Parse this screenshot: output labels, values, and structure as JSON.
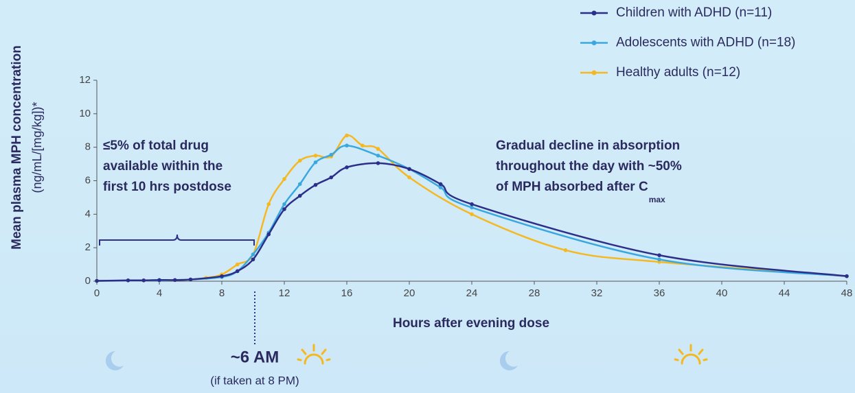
{
  "chart_data": {
    "type": "line",
    "x_label": "Hours after evening dose",
    "y_label": "Mean plasma MPH concentration",
    "y_label_units": "(ng/mL/[mg/kg])*",
    "xlim": [
      0,
      48
    ],
    "ylim": [
      0,
      12
    ],
    "xticks": [
      0,
      4,
      8,
      12,
      16,
      20,
      24,
      28,
      32,
      36,
      40,
      44,
      48
    ],
    "yticks": [
      0,
      2,
      4,
      6,
      8,
      10,
      12
    ],
    "legend": "top-right",
    "series": [
      {
        "name": "Children with ADHD (n=11)",
        "color": "#2b2f8a",
        "x": [
          0,
          2,
          3,
          4,
          5,
          6,
          8,
          9,
          10,
          11,
          12,
          13,
          14,
          15,
          16,
          18,
          20,
          22,
          24,
          36,
          48
        ],
        "values": [
          0.02,
          0.05,
          0.05,
          0.07,
          0.07,
          0.1,
          0.3,
          0.6,
          1.3,
          2.8,
          4.3,
          5.1,
          5.75,
          6.2,
          6.8,
          7.05,
          6.7,
          5.8,
          4.6,
          1.55,
          0.3
        ]
      },
      {
        "name": "Adolescents with ADHD (n=18)",
        "color": "#3aa8e0",
        "x": [
          0,
          4,
          6,
          8,
          9,
          10,
          11,
          12,
          13,
          14,
          15,
          16,
          18,
          20,
          22,
          24,
          36,
          48
        ],
        "values": [
          0.02,
          0.05,
          0.1,
          0.25,
          0.6,
          1.6,
          2.9,
          4.6,
          5.8,
          7.1,
          7.55,
          8.1,
          7.5,
          6.7,
          5.6,
          4.4,
          1.3,
          0.3
        ]
      },
      {
        "name": "Healthy adults (n=12)",
        "color": "#f5b820",
        "x": [
          0,
          4,
          6,
          7,
          8,
          9,
          10,
          11,
          12,
          13,
          14,
          15,
          16,
          17,
          18,
          20,
          24,
          30,
          36,
          48
        ],
        "values": [
          0.02,
          0.05,
          0.1,
          0.2,
          0.4,
          1.0,
          1.6,
          4.6,
          6.1,
          7.2,
          7.5,
          7.45,
          8.7,
          8.1,
          7.9,
          6.2,
          4.0,
          1.85,
          1.15,
          0.3
        ]
      }
    ],
    "annotations": {
      "left": [
        "≤5% of total drug",
        "available within the",
        "first 10 hrs postdose"
      ],
      "right": [
        "Gradual decline in absorption",
        "throughout the day with ~50%",
        "of MPH absorbed after C"
      ],
      "right_subscript": "max",
      "time": "~6 AM",
      "time_note": "(if taken at 8 PM)"
    }
  }
}
